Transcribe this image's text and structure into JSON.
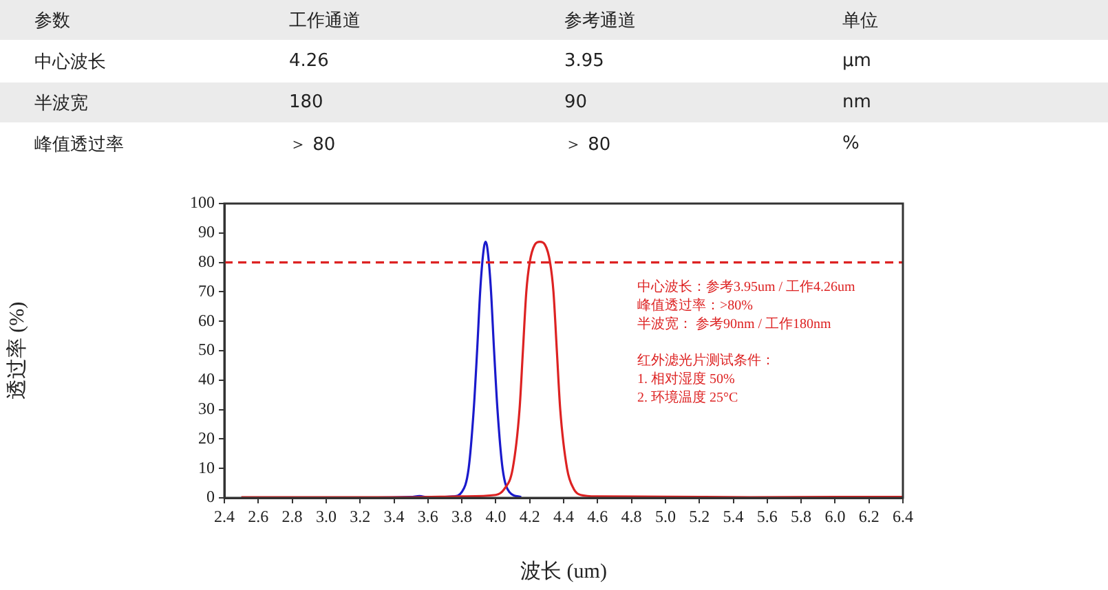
{
  "chart_data": [
    {
      "type": "other",
      "categories": [
        "参数",
        "工作通道",
        "参考通道",
        "单位"
      ],
      "cell_labels": [
        [
          "中心波长",
          "4.26",
          "3.95",
          "μm"
        ],
        [
          "半波宽",
          "180",
          "90",
          "nm"
        ],
        [
          "峰值透过率",
          "＞ 80",
          "＞ 80",
          "%"
        ]
      ]
    },
    {
      "type": "line",
      "xlabel": "波长 (um)",
      "ylabel": "透过率 (%)",
      "xlim": [
        2.4,
        6.4
      ],
      "ylim": [
        0,
        100
      ],
      "xticks": [
        {
          "value": 2.4,
          "label": "2.4"
        },
        {
          "value": 2.6,
          "label": "2.6"
        },
        {
          "value": 2.8,
          "label": "2.8"
        },
        {
          "value": 3.0,
          "label": "3.0"
        },
        {
          "value": 3.2,
          "label": "3.2"
        },
        {
          "value": 3.4,
          "label": "3.4"
        },
        {
          "value": 3.6,
          "label": "3.6"
        },
        {
          "value": 3.8,
          "label": "3.8"
        },
        {
          "value": 4.0,
          "label": "4.0"
        },
        {
          "value": 4.2,
          "label": "4.2"
        },
        {
          "value": 4.4,
          "label": "4.4"
        },
        {
          "value": 4.6,
          "label": "4.6"
        },
        {
          "value": 4.8,
          "label": "4.8"
        },
        {
          "value": 5.0,
          "label": "5.0"
        },
        {
          "value": 5.2,
          "label": "5.2"
        },
        {
          "value": 5.4,
          "label": "5.4"
        },
        {
          "value": 5.6,
          "label": "5.6"
        },
        {
          "value": 5.8,
          "label": "5.8"
        },
        {
          "value": 6.0,
          "label": "6.0"
        },
        {
          "value": 6.2,
          "label": "6.2"
        },
        {
          "value": 6.4,
          "label": "6.4"
        }
      ],
      "yticks": [
        0,
        10,
        20,
        30,
        40,
        50,
        60,
        70,
        80,
        90,
        100
      ],
      "grid": false,
      "legend": false,
      "marker": "none",
      "line_style": "solid",
      "series": [
        {
          "color": "#1a1acc",
          "x": [
            2.5,
            3.0,
            3.5,
            3.55,
            3.6,
            3.75,
            3.8,
            3.84,
            3.87,
            3.89,
            3.91,
            3.93,
            3.94,
            3.95,
            3.97,
            3.99,
            4.01,
            4.04,
            4.08,
            4.15
          ],
          "values": [
            0,
            0,
            0.3,
            0.6,
            0.2,
            0.5,
            2,
            10,
            30,
            50,
            72,
            85,
            87,
            85,
            72,
            50,
            30,
            10,
            2,
            0.3
          ]
        },
        {
          "color": "#dd2222",
          "x": [
            2.5,
            3.0,
            3.5,
            3.8,
            4.0,
            4.05,
            4.1,
            4.14,
            4.16,
            4.18,
            4.2,
            4.23,
            4.26,
            4.29,
            4.32,
            4.34,
            4.36,
            4.38,
            4.42,
            4.46,
            4.5,
            4.6,
            5.0,
            5.5,
            6.0,
            6.4
          ],
          "values": [
            0.2,
            0.2,
            0.2,
            0.5,
            1,
            3,
            10,
            30,
            50,
            70,
            80,
            86,
            87,
            86,
            80,
            70,
            50,
            30,
            10,
            3,
            1,
            0.5,
            0.4,
            0.2,
            0.3,
            0.3
          ]
        }
      ],
      "ref_lines": [
        {
          "axis": "y",
          "value": 80,
          "color": "#dd2222",
          "line_style": "dashed"
        }
      ],
      "annotations": [
        "中心波长：参考3.95um / 工作4.26um",
        "峰值透过率：>80%",
        "半波宽： 参考90nm / 工作180nm",
        "红外滤光片测试条件：",
        "1. 相对湿度 50%",
        "2. 环境温度 25°C"
      ]
    }
  ]
}
